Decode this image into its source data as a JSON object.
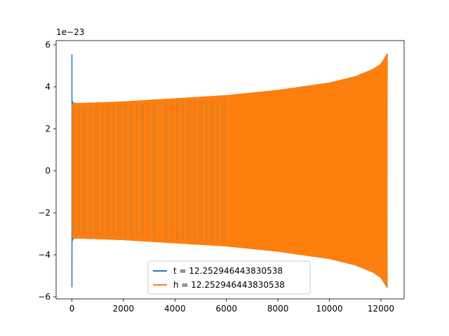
{
  "chart_data": {
    "type": "line",
    "title": "",
    "xlabel": "",
    "ylabel": "",
    "xlim": [
      -614,
      12900
    ],
    "ylim": [
      -6.1,
      6.2
    ],
    "y_scale_label": "1e−23",
    "x_ticks": [
      0,
      2000,
      4000,
      6000,
      8000,
      10000,
      12000
    ],
    "x_tick_labels": [
      "0",
      "2000",
      "4000",
      "6000",
      "8000",
      "10000",
      "12000"
    ],
    "y_ticks": [
      -6,
      -4,
      -2,
      0,
      2,
      4,
      6
    ],
    "y_tick_labels": [
      "−6",
      "−4",
      "−2",
      "0",
      "2",
      "4",
      "6"
    ],
    "grid": false,
    "legend_position": "lower center",
    "series": [
      {
        "name": "t = 12.252946443830538",
        "color": "#1f77b4",
        "envelope": {
          "x": [
            0,
            10,
            50,
            200,
            2000,
            4000,
            6000,
            8000,
            10000,
            11000,
            11700,
            12000,
            12252
          ],
          "amplitude": [
            5.55,
            3.35,
            3.25,
            3.22,
            3.3,
            3.45,
            3.6,
            3.85,
            4.2,
            4.5,
            4.85,
            5.1,
            5.6
          ]
        }
      },
      {
        "name": "h = 12.252946443830538",
        "color": "#ff7f0e",
        "envelope": {
          "x": [
            0,
            50,
            200,
            2000,
            4000,
            6000,
            8000,
            10000,
            11000,
            11700,
            12000,
            12252
          ],
          "amplitude": [
            3.2,
            3.22,
            3.22,
            3.3,
            3.45,
            3.6,
            3.85,
            4.2,
            4.5,
            4.85,
            5.1,
            5.6
          ]
        }
      }
    ]
  }
}
